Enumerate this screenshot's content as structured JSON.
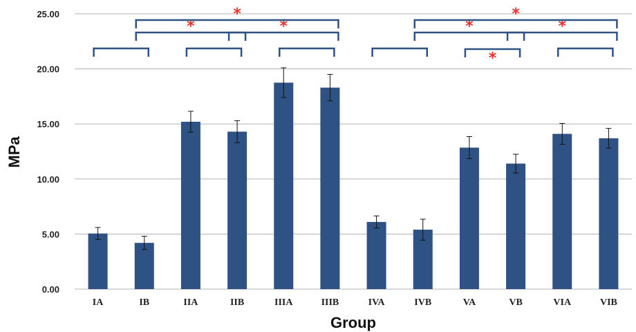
{
  "colors": {
    "bar": "#2e5283",
    "grid": "#b3b3b3",
    "bracket": "#2e5283",
    "star": "#e8322c",
    "error": "#111111"
  },
  "chart_data": {
    "type": "bar",
    "xlabel": "Group",
    "ylabel": "MPa",
    "ylim": [
      0,
      25
    ],
    "yticks": [
      "0.00",
      "5.00",
      "10.00",
      "15.00",
      "20.00",
      "25.00"
    ],
    "grid": true,
    "categories": [
      "IA",
      "IB",
      "IIA",
      "IIB",
      "IIIA",
      "IIIB",
      "IVA",
      "IVB",
      "VA",
      "VB",
      "VIA",
      "VIB"
    ],
    "values": [
      5.05,
      4.2,
      15.2,
      14.3,
      18.75,
      18.3,
      6.1,
      5.4,
      12.85,
      11.4,
      14.1,
      13.7
    ],
    "errors": [
      0.55,
      0.6,
      0.95,
      1.0,
      1.35,
      1.2,
      0.55,
      0.95,
      1.0,
      0.85,
      0.95,
      0.9
    ],
    "significance": [
      {
        "from": "IA",
        "to": "IB",
        "star": ""
      },
      {
        "from": "IIA",
        "to": "IIB",
        "star": ""
      },
      {
        "from": "IIIA",
        "to": "IIIB",
        "star": ""
      },
      {
        "from": "IVA",
        "to": "IVB",
        "star": ""
      },
      {
        "from": "VIA",
        "to": "VIB",
        "star": ""
      },
      {
        "from": "VA",
        "to": "VB",
        "star": "*"
      },
      {
        "from": "IB",
        "to": "IIB",
        "star": "*"
      },
      {
        "from": "IIB",
        "to": "IIIB",
        "star": "*"
      },
      {
        "from": "IVB",
        "to": "VB",
        "star": "*"
      },
      {
        "from": "VB",
        "to": "VIB",
        "star": "*"
      },
      {
        "from": "IB",
        "to": "IIIB",
        "star": "*"
      },
      {
        "from": "IVB",
        "to": "VIB",
        "star": "*"
      }
    ]
  }
}
